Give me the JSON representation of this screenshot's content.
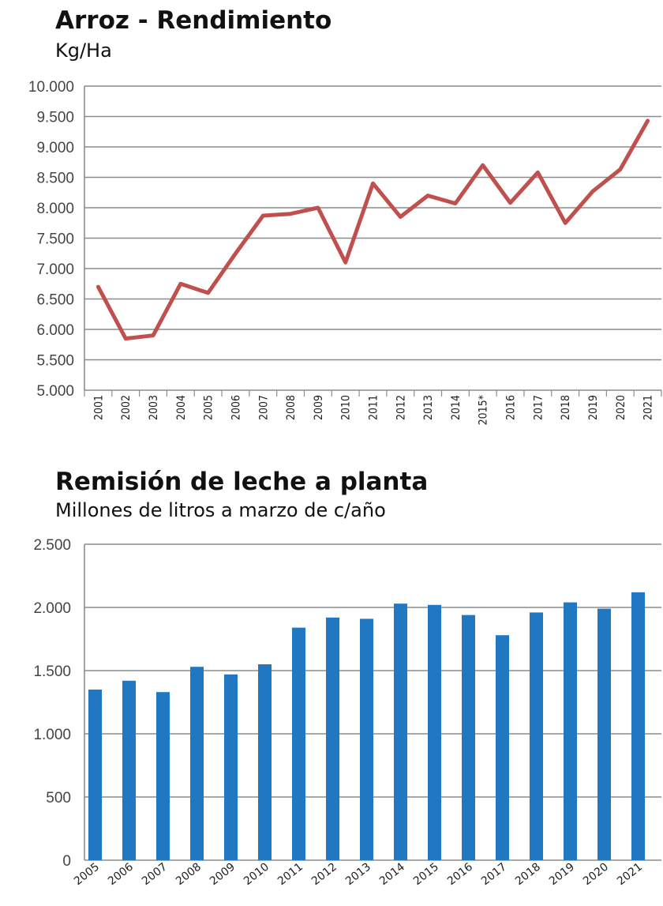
{
  "chart_data": [
    {
      "type": "line",
      "title": "Arroz - Rendimiento",
      "subtitle": "Kg/Ha",
      "ylabel": "Kg/Ha",
      "ylim": [
        5000,
        10000
      ],
      "yticks": [
        5000,
        5500,
        6000,
        6500,
        7000,
        7500,
        8000,
        8500,
        9000,
        9500,
        10000
      ],
      "ytick_labels": [
        "5.000",
        "5.500",
        "6.000",
        "6.500",
        "7.000",
        "7.500",
        "8.000",
        "8.500",
        "9.000",
        "9.500",
        "10.000"
      ],
      "categories": [
        "2001",
        "2002",
        "2003",
        "2004",
        "2005",
        "2006",
        "2007",
        "2008",
        "2009",
        "2010",
        "2011",
        "2012",
        "2013",
        "2014",
        "2015*",
        "2016",
        "2017",
        "2018",
        "2019",
        "2020",
        "2021"
      ],
      "series": [
        {
          "name": "Rendimiento",
          "color": "#c0504d",
          "values": [
            6700,
            5850,
            5900,
            6750,
            6600,
            7250,
            7870,
            7900,
            8000,
            7100,
            8400,
            7850,
            8200,
            8070,
            8700,
            8080,
            8580,
            7750,
            8270,
            8630,
            9430
          ]
        }
      ],
      "grid": true
    },
    {
      "type": "bar",
      "title": "Remisión de leche a planta",
      "subtitle": "Millones de litros a marzo de c/año",
      "ylabel": "Millones de litros",
      "ylim": [
        0,
        2500
      ],
      "yticks": [
        0,
        500,
        1000,
        1500,
        2000,
        2500
      ],
      "ytick_labels": [
        "0",
        "500",
        "1.000",
        "1.500",
        "2.000",
        "2.500"
      ],
      "categories": [
        "2005",
        "2006",
        "2007",
        "2008",
        "2009",
        "2010",
        "2011",
        "2012",
        "2013",
        "2014",
        "2015",
        "2016",
        "2017",
        "2018",
        "2019",
        "2020",
        "2021"
      ],
      "series": [
        {
          "name": "Remisión",
          "color": "#1f78c1",
          "values": [
            1350,
            1420,
            1330,
            1530,
            1470,
            1550,
            1840,
            1920,
            1910,
            2030,
            2020,
            1940,
            1780,
            1960,
            2040,
            1990,
            2120
          ]
        }
      ],
      "grid": true
    }
  ]
}
